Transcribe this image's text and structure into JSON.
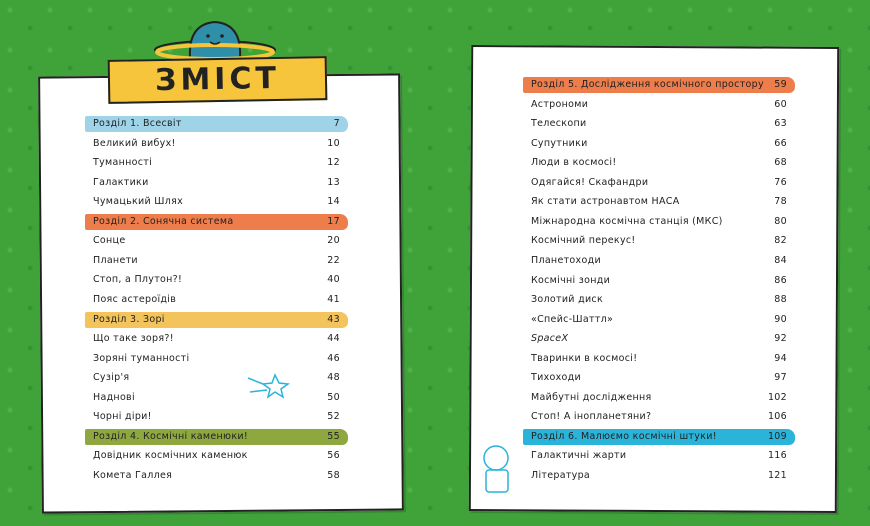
{
  "title": "ЗМІСТ",
  "left_page": {
    "entries": [
      {
        "label": "Розділ 1. Всесвіт",
        "page": 7,
        "color": "#9fd4e8"
      },
      {
        "label": "Великий вибух!",
        "page": 10
      },
      {
        "label": "Туманності",
        "page": 12
      },
      {
        "label": "Галактики",
        "page": 13
      },
      {
        "label": "Чумацький Шлях",
        "page": 14
      },
      {
        "label": "Розділ 2. Сонячна система",
        "page": 17,
        "color": "#ee7d4c"
      },
      {
        "label": "Сонце",
        "page": 20
      },
      {
        "label": "Планети",
        "page": 22
      },
      {
        "label": "Стоп, а Плутон?!",
        "page": 40
      },
      {
        "label": "Пояс астероїдів",
        "page": 41
      },
      {
        "label": "Розділ 3. Зорі",
        "page": 43,
        "color": "#f3c35c"
      },
      {
        "label": "Що таке зоря?!",
        "page": 44
      },
      {
        "label": "Зоряні туманності",
        "page": 46
      },
      {
        "label": "Сузір'я",
        "page": 48
      },
      {
        "label": "Наднові",
        "page": 50
      },
      {
        "label": "Чорні діри!",
        "page": 52
      },
      {
        "label": "Розділ 4. Космічні каменюки!",
        "page": 55,
        "color": "#8ea83f"
      },
      {
        "label": "Довідник космічних каменюк",
        "page": 56
      },
      {
        "label": "Комета Галлея",
        "page": 58
      }
    ]
  },
  "right_page": {
    "entries": [
      {
        "label": "Розділ 5. Дослідження космічного простору",
        "page": 59,
        "color": "#ee7d4c"
      },
      {
        "label": "Астрономи",
        "page": 60
      },
      {
        "label": "Телескопи",
        "page": 63
      },
      {
        "label": "Супутники",
        "page": 66
      },
      {
        "label": "Люди в космосі!",
        "page": 68
      },
      {
        "label": "Одягайся! Скафандри",
        "page": 76
      },
      {
        "label": "Як стати астронавтом НАСА",
        "page": 78
      },
      {
        "label": "Міжнародна космічна станція (МКС)",
        "page": 80
      },
      {
        "label": "Космічний перекус!",
        "page": 82
      },
      {
        "label": "Планетоходи",
        "page": 84
      },
      {
        "label": "Космічні зонди",
        "page": 86
      },
      {
        "label": "Золотий диск",
        "page": 88
      },
      {
        "label": "«Спейс-Шаттл»",
        "page": 90
      },
      {
        "label": "SpaceX",
        "page": 92,
        "style": "italic"
      },
      {
        "label": "Тваринки в космосі!",
        "page": 94
      },
      {
        "label": "Тихоходи",
        "page": 97
      },
      {
        "label": "Майбутні дослідження",
        "page": 102
      },
      {
        "label": "Стоп! А інопланетяни?",
        "page": 106
      },
      {
        "label": "Розділ 6. Малюємо космічні штуки!",
        "page": 109,
        "color": "#2bb4d9"
      },
      {
        "label": "Галактичні жарти",
        "page": 116
      },
      {
        "label": "Література",
        "page": 121
      }
    ]
  }
}
